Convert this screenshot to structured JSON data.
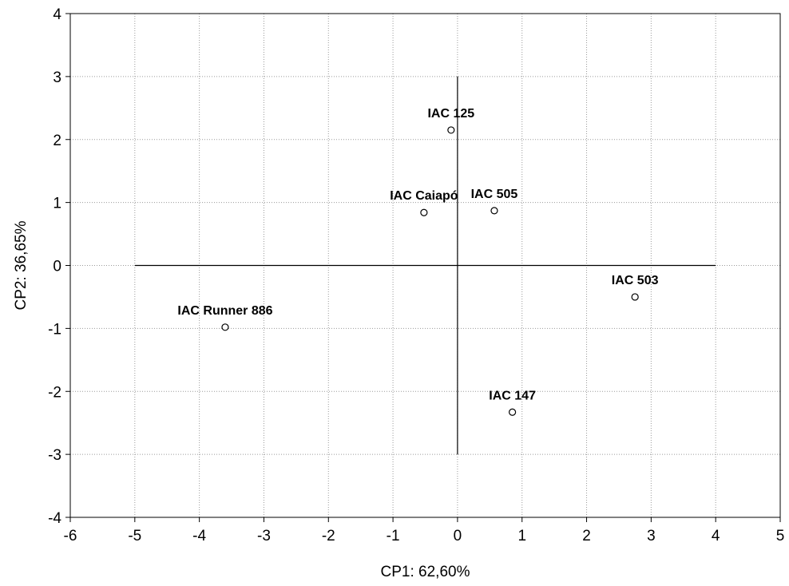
{
  "chart_data": {
    "type": "scatter",
    "title": "",
    "xlabel": "CP1: 62,60%",
    "ylabel": "CP2: 36,65%",
    "xlim": [
      -6,
      5
    ],
    "ylim": [
      -4,
      4
    ],
    "xticks": [
      -6,
      -5,
      -4,
      -3,
      -2,
      -1,
      0,
      1,
      2,
      3,
      4,
      5
    ],
    "yticks": [
      -4,
      -3,
      -2,
      -1,
      0,
      1,
      2,
      3,
      4
    ],
    "grid": true,
    "reference_lines": {
      "horizontal": {
        "y": 0,
        "x_from": -5,
        "x_to": 4
      },
      "vertical": {
        "x": 0,
        "y_from": -3,
        "y_to": 3
      }
    },
    "points": [
      {
        "label": "IAC 125",
        "x": -0.1,
        "y": 2.15
      },
      {
        "label": "IAC Caiapó",
        "x": -0.52,
        "y": 0.84
      },
      {
        "label": "IAC 505",
        "x": 0.57,
        "y": 0.87
      },
      {
        "label": "IAC 503",
        "x": 2.75,
        "y": -0.5
      },
      {
        "label": "IAC Runner 886",
        "x": -3.6,
        "y": -0.98
      },
      {
        "label": "IAC 147",
        "x": 0.85,
        "y": -2.33
      }
    ]
  }
}
